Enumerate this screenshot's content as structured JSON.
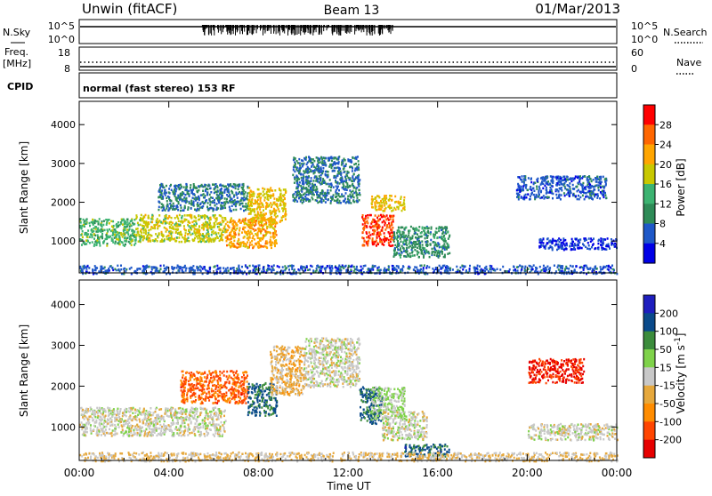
{
  "header": {
    "station": "Unwin (fitACF)",
    "beam": "Beam 13",
    "date": "01/Mar/2013"
  },
  "status_panels": {
    "nsky_label": "N.Sky",
    "nsky_ticks": [
      "10^5",
      "10^0"
    ],
    "nsearch_label": "N.Search",
    "freq_label": "Freq.",
    "freq_unit": "[MHz]",
    "freq_ticks": [
      "18",
      "8"
    ],
    "nave_ticks": [
      "60",
      "0"
    ],
    "nave_label": "Nave",
    "cpid_label": "CPID",
    "cpid_text": "normal (fast stereo) 153 RF"
  },
  "colors": {
    "power": [
      "#0000e6",
      "#1e58c8",
      "#2e8b57",
      "#3cb371",
      "#c8c800",
      "#ffa500",
      "#ff6600",
      "#ff0000"
    ],
    "velocity": [
      "#1e1ebe",
      "#0a4a8a",
      "#3c8c3c",
      "#7fd24a",
      "#c8c8c8",
      "#e6a83c",
      "#ff8c00",
      "#ff4500",
      "#e60000"
    ]
  },
  "chart_data": [
    {
      "type": "heatmap",
      "title": "Power",
      "xlabel": "Time UT",
      "ylabel": "Slant Range [km]",
      "xlim": [
        0,
        24
      ],
      "ylim": [
        180,
        4600
      ],
      "x_ticks": [
        "00:00",
        "04:00",
        "08:00",
        "12:00",
        "16:00",
        "20:00",
        "00:00"
      ],
      "y_ticks": [
        1000,
        2000,
        3000,
        4000
      ],
      "colorbar": {
        "label": "Power [dB]",
        "range": [
          0,
          32
        ],
        "ticks": [
          4,
          8,
          12,
          16,
          20,
          24,
          28
        ]
      },
      "regions": [
        {
          "t0": 0.0,
          "t1": 2.5,
          "r0": 900,
          "r1": 1600,
          "value": 14
        },
        {
          "t0": 2.5,
          "t1": 6.5,
          "r0": 1000,
          "r1": 1700,
          "value": 18
        },
        {
          "t0": 6.5,
          "t1": 8.8,
          "r0": 850,
          "r1": 1650,
          "value": 22
        },
        {
          "t0": 3.5,
          "t1": 7.5,
          "r0": 1800,
          "r1": 2500,
          "value": 8
        },
        {
          "t0": 7.5,
          "t1": 9.2,
          "r0": 1500,
          "r1": 2400,
          "value": 20
        },
        {
          "t0": 9.5,
          "t1": 12.5,
          "r0": 2000,
          "r1": 3200,
          "value": 8
        },
        {
          "t0": 12.6,
          "t1": 14.0,
          "r0": 900,
          "r1": 1700,
          "value": 28
        },
        {
          "t0": 13.0,
          "t1": 14.5,
          "r0": 1800,
          "r1": 2200,
          "value": 20
        },
        {
          "t0": 14.0,
          "t1": 16.5,
          "r0": 600,
          "r1": 1400,
          "value": 10
        },
        {
          "t0": 0.0,
          "t1": 24.0,
          "r0": 180,
          "r1": 400,
          "value": 6
        },
        {
          "t0": 19.5,
          "t1": 23.5,
          "r0": 2100,
          "r1": 2700,
          "value": 6
        },
        {
          "t0": 20.5,
          "t1": 24.0,
          "r0": 800,
          "r1": 1100,
          "value": 4
        }
      ]
    },
    {
      "type": "heatmap",
      "title": "Velocity",
      "xlabel": "Time UT",
      "ylabel": "Slant Range [km]",
      "xlim": [
        0,
        24
      ],
      "ylim": [
        180,
        4600
      ],
      "x_ticks": [
        "00:00",
        "04:00",
        "08:00",
        "12:00",
        "16:00",
        "20:00",
        "00:00"
      ],
      "y_ticks": [
        1000,
        2000,
        3000,
        4000
      ],
      "colorbar": {
        "label": "Velocity [m s^-1]",
        "range": [
          -250,
          250
        ],
        "ticks": [
          200,
          100,
          50,
          15,
          -15,
          -50,
          -100,
          -200
        ]
      },
      "regions": [
        {
          "t0": 0.0,
          "t1": 6.5,
          "r0": 800,
          "r1": 1500,
          "value": 0
        },
        {
          "t0": 4.5,
          "t1": 7.5,
          "r0": 1600,
          "r1": 2400,
          "value": -150
        },
        {
          "t0": 7.5,
          "t1": 8.8,
          "r0": 1300,
          "r1": 2100,
          "value": 150
        },
        {
          "t0": 8.5,
          "t1": 10.0,
          "r0": 1800,
          "r1": 3000,
          "value": -50
        },
        {
          "t0": 10.0,
          "t1": 12.5,
          "r0": 2000,
          "r1": 3200,
          "value": 0
        },
        {
          "t0": 12.5,
          "t1": 13.5,
          "r0": 1100,
          "r1": 2000,
          "value": 150
        },
        {
          "t0": 13.0,
          "t1": 14.5,
          "r0": 1200,
          "r1": 2000,
          "value": 30
        },
        {
          "t0": 13.5,
          "t1": 15.5,
          "r0": 700,
          "r1": 1400,
          "value": 0
        },
        {
          "t0": 14.5,
          "t1": 16.5,
          "r0": 300,
          "r1": 600,
          "value": 150
        },
        {
          "t0": 20.0,
          "t1": 22.5,
          "r0": 2100,
          "r1": 2700,
          "value": -200
        },
        {
          "t0": 20.0,
          "t1": 24.0,
          "r0": 700,
          "r1": 1100,
          "value": 0
        },
        {
          "t0": 0.0,
          "t1": 24.0,
          "r0": 180,
          "r1": 400,
          "value": -30
        }
      ]
    }
  ]
}
